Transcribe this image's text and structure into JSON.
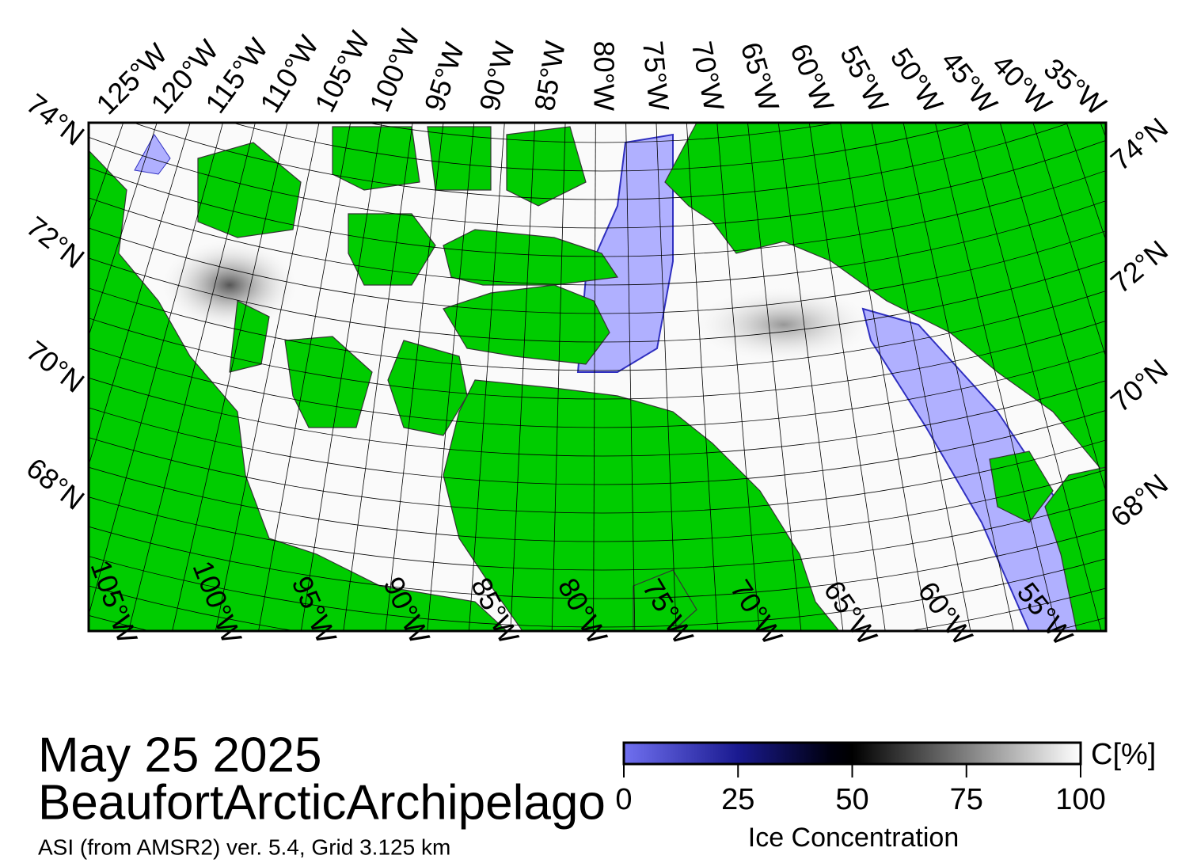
{
  "map": {
    "top_longitudes": [
      "125°W",
      "120°W",
      "115°W",
      "110°W",
      "105°W",
      "100°W",
      "95°W",
      "90°W",
      "85°W",
      "80°W",
      "75°W",
      "70°W",
      "65°W",
      "60°W",
      "55°W",
      "50°W",
      "45°W",
      "40°W",
      "35°W"
    ],
    "bottom_longitudes": [
      "105°W",
      "100°W",
      "95°W",
      "90°W",
      "85°W",
      "80°W",
      "75°W",
      "70°W",
      "65°W",
      "60°W",
      "55°W"
    ],
    "left_latitudes": [
      "74°N",
      "72°N",
      "70°N",
      "68°N"
    ],
    "right_latitudes": [
      "74°N",
      "72°N",
      "70°N",
      "68°N"
    ],
    "date": "May 25 2025",
    "region": "BeaufortArcticArchipelago",
    "source": "ASI (from AMSR2) ver. 5.4,  Grid 3.125 km",
    "colorbar": {
      "unit": "C[%]",
      "label": "Ice Concentration",
      "lim": [
        0,
        100
      ],
      "ticks": [
        0,
        25,
        50,
        75,
        100
      ]
    }
  }
}
